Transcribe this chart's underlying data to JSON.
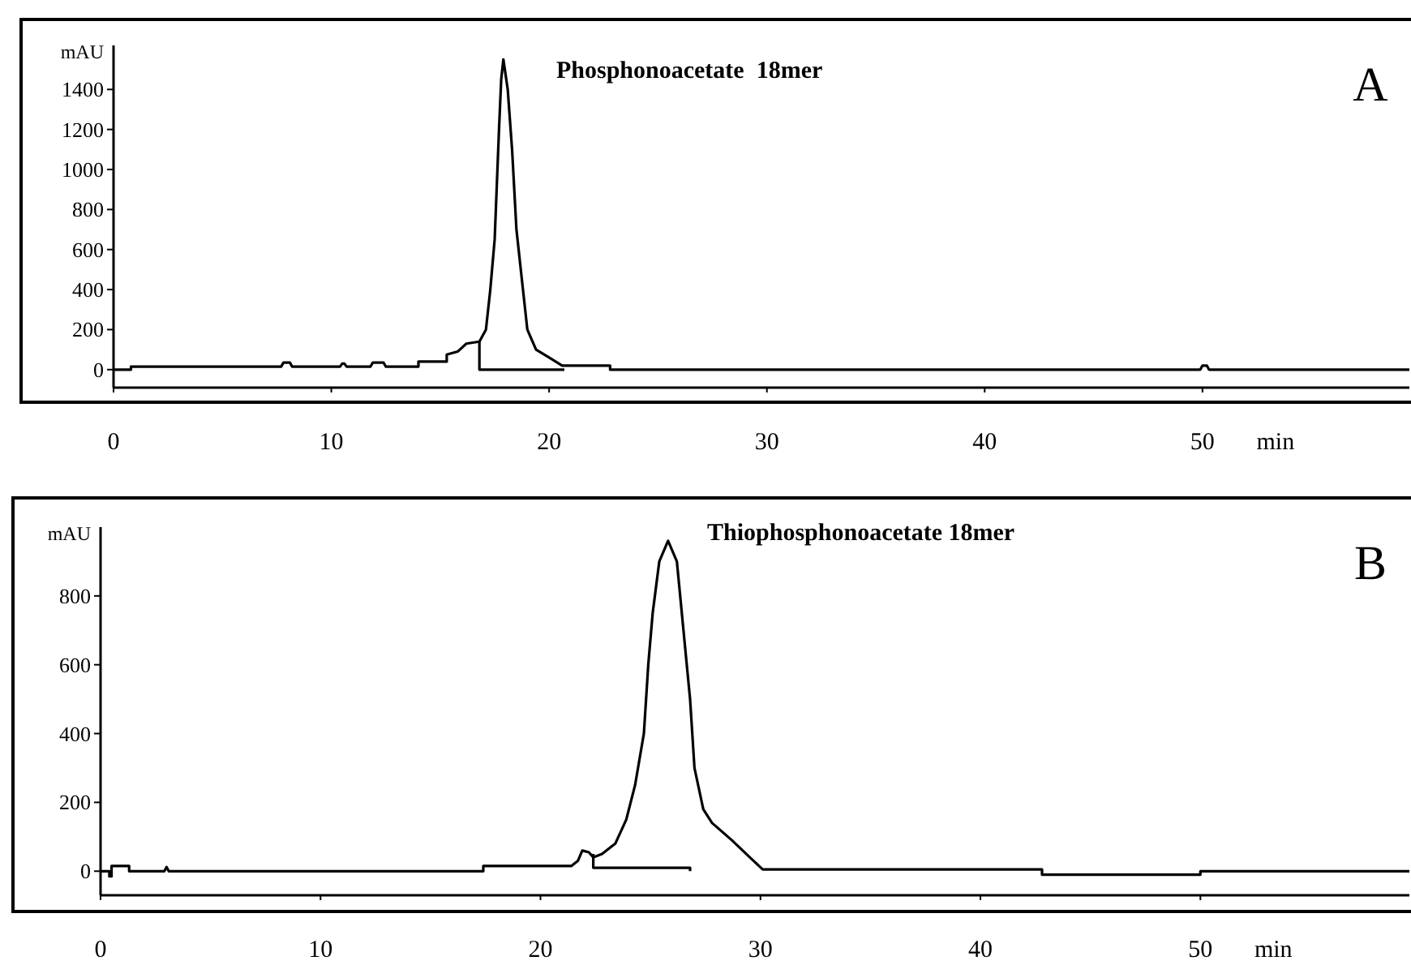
{
  "chart_data": [
    {
      "type": "line",
      "title": "A",
      "xlabel": "min",
      "ylabel": "mAU",
      "annotations": [
        "Phosphonoacetate  18mer"
      ],
      "xlim": [
        0,
        59.5
      ],
      "ylim": [
        -90,
        1620
      ],
      "xticks": [
        0,
        10,
        20,
        30,
        40,
        50
      ],
      "yticks": [
        0,
        200,
        400,
        600,
        800,
        1000,
        1200,
        1400
      ],
      "marker": "none",
      "line_style": "solid",
      "series": [
        {
          "color": "#000000",
          "x": [
            0,
            0.8,
            0.8,
            7.7,
            7.8,
            8.1,
            8.2,
            10.4,
            10.5,
            10.6,
            10.7,
            11.8,
            11.9,
            12.4,
            12.5,
            14.0,
            14.0,
            15.3,
            15.3,
            15.8,
            16.2,
            16.8,
            17.1,
            17.3,
            17.5,
            17.7,
            17.8,
            17.9,
            18.1,
            18.3,
            18.5,
            18.8,
            19.0,
            19.4,
            20.0,
            20.6,
            22.8,
            22.8,
            49.9,
            50.0,
            50.2,
            50.3,
            59.5
          ],
          "values": [
            0,
            0,
            15,
            15,
            35,
            35,
            15,
            15,
            30,
            30,
            15,
            15,
            35,
            35,
            15,
            15,
            40,
            40,
            75,
            90,
            130,
            140,
            200,
            400,
            650,
            1200,
            1450,
            1550,
            1400,
            1100,
            700,
            400,
            200,
            100,
            60,
            20,
            20,
            0,
            0,
            20,
            20,
            0,
            0
          ]
        },
        {
          "color": "#000000",
          "x": [
            16.8,
            16.8,
            20.7
          ],
          "values": [
            140,
            0,
            0
          ]
        }
      ]
    },
    {
      "type": "line",
      "title": "B",
      "xlabel": "min",
      "ylabel": "mAU",
      "annotations": [
        "Thiophosphonoacetate 18mer"
      ],
      "xlim": [
        0,
        59.5
      ],
      "ylim": [
        -70,
        1000
      ],
      "xticks": [
        0,
        10,
        20,
        30,
        40,
        50
      ],
      "yticks": [
        0,
        200,
        400,
        600,
        800
      ],
      "marker": "none",
      "line_style": "solid",
      "series": [
        {
          "color": "#000000",
          "x": [
            0,
            0.4,
            0.4,
            0.5,
            0.5,
            1.3,
            1.3,
            2.9,
            3.0,
            3.1,
            17.4,
            17.4,
            21.4,
            21.7,
            21.9,
            22.2,
            22.4,
            22.8,
            23.4,
            23.9,
            24.3,
            24.7,
            24.9,
            25.1,
            25.4,
            25.8,
            26.2,
            26.5,
            26.8,
            27.0,
            27.4,
            27.8,
            28.7,
            29.6,
            30.1,
            42.8,
            42.8,
            50.0,
            50.0,
            59.5
          ],
          "values": [
            0,
            0,
            -15,
            -15,
            15,
            15,
            0,
            0,
            12,
            0,
            0,
            15,
            15,
            30,
            60,
            55,
            40,
            50,
            80,
            150,
            250,
            400,
            600,
            750,
            900,
            960,
            900,
            700,
            500,
            300,
            180,
            140,
            90,
            35,
            5,
            5,
            -10,
            -10,
            0,
            0
          ]
        },
        {
          "color": "#000000",
          "x": [
            22.4,
            22.4,
            26.8,
            26.8
          ],
          "values": [
            50,
            10,
            10,
            0
          ]
        }
      ]
    }
  ]
}
